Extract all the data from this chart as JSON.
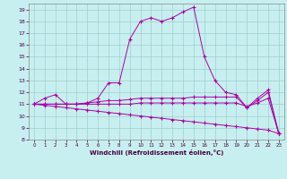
{
  "title": "",
  "xlabel": "Windchill (Refroidissement éolien,°C)",
  "bg_color": "#c8efef",
  "line_color": "#aa00aa",
  "grid_color": "#9ecece",
  "xlim": [
    -0.5,
    23.5
  ],
  "ylim": [
    8,
    19.5
  ],
  "yticks": [
    8,
    9,
    10,
    11,
    12,
    13,
    14,
    15,
    16,
    17,
    18,
    19
  ],
  "xticks": [
    0,
    1,
    2,
    3,
    4,
    5,
    6,
    7,
    8,
    9,
    10,
    11,
    12,
    13,
    14,
    15,
    16,
    17,
    18,
    19,
    20,
    21,
    22,
    23
  ],
  "series": [
    [
      11.0,
      11.5,
      11.8,
      11.0,
      11.0,
      11.1,
      11.5,
      12.8,
      12.8,
      16.5,
      18.0,
      18.3,
      18.0,
      18.3,
      18.8,
      19.2,
      15.0,
      13.0,
      12.0,
      11.8,
      10.7,
      11.5,
      12.2,
      8.5
    ],
    [
      11.0,
      11.0,
      11.0,
      11.0,
      11.0,
      11.1,
      11.2,
      11.3,
      11.3,
      11.4,
      11.5,
      11.5,
      11.5,
      11.5,
      11.5,
      11.6,
      11.6,
      11.6,
      11.6,
      11.6,
      10.7,
      11.3,
      12.0,
      8.5
    ],
    [
      11.0,
      11.0,
      11.0,
      11.0,
      11.0,
      11.0,
      11.0,
      11.0,
      11.0,
      11.0,
      11.1,
      11.1,
      11.1,
      11.1,
      11.1,
      11.1,
      11.1,
      11.1,
      11.1,
      11.1,
      10.8,
      11.1,
      11.5,
      8.5
    ],
    [
      11.0,
      10.9,
      10.8,
      10.7,
      10.6,
      10.5,
      10.4,
      10.3,
      10.2,
      10.1,
      10.0,
      9.9,
      9.8,
      9.7,
      9.6,
      9.5,
      9.4,
      9.3,
      9.2,
      9.1,
      9.0,
      8.9,
      8.8,
      8.5
    ]
  ]
}
